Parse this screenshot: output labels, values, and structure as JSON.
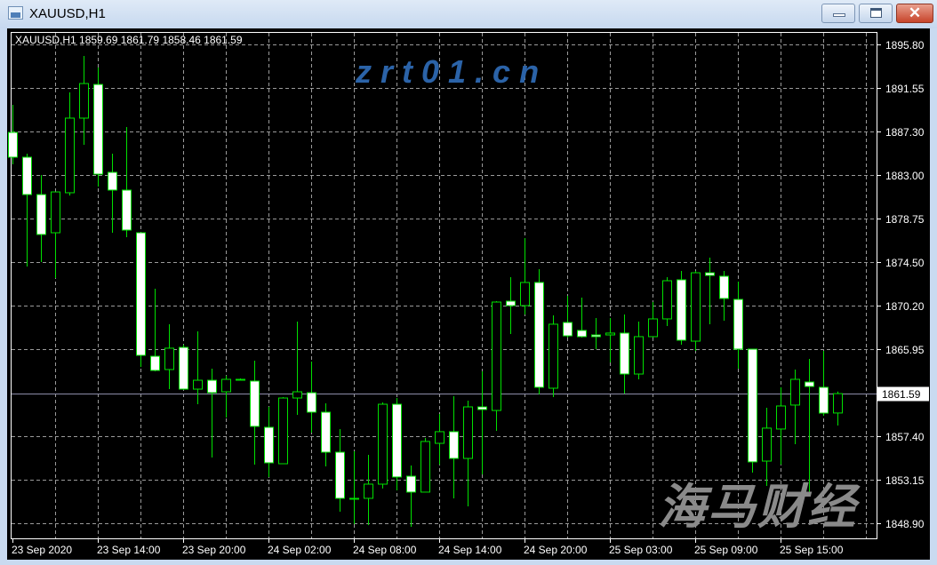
{
  "window": {
    "title": "XAUUSD,H1",
    "buttons": {
      "minimize": "minimize",
      "maximize": "maximize",
      "close": "close"
    }
  },
  "chart_header": "XAUUSD,H1  1859.69 1861.79 1858.46 1861.59",
  "watermark": {
    "text": "海马财经",
    "url": "zrt01.cn"
  },
  "colors": {
    "background": "#000000",
    "candle_stroke": "#00e000",
    "bull_body": "#000000",
    "bear_body": "#ffffff",
    "grid": "#9a9a9a",
    "axis_text": "#ffffff"
  },
  "chart_data": {
    "type": "candlestick",
    "symbol": "XAUUSD",
    "timeframe": "H1",
    "grid": true,
    "ylim": [
      1847.41,
      1897.02
    ],
    "y_ticks": [
      "1895.80",
      "1891.55",
      "1887.30",
      "1883.00",
      "1878.75",
      "1874.50",
      "1870.20",
      "1865.95",
      "1857.40",
      "1853.15",
      "1848.90"
    ],
    "current_price": "1861.59",
    "x_tick_labels": [
      "23 Sep 2020",
      "23 Sep 14:00",
      "23 Sep 20:00",
      "24 Sep 02:00",
      "24 Sep 08:00",
      "24 Sep 14:00",
      "24 Sep 20:00",
      "25 Sep 03:00",
      "25 Sep 09:00",
      "25 Sep 15:00"
    ],
    "x_tick_bar_index": [
      0,
      6,
      12,
      18,
      24,
      30,
      36,
      42,
      48,
      54
    ],
    "ohlc": [
      [
        1887.18,
        1889.88,
        1884.05,
        1884.75
      ],
      [
        1884.75,
        1885.1,
        1874.04,
        1881.09
      ],
      [
        1881.09,
        1883.01,
        1874.48,
        1877.18
      ],
      [
        1877.35,
        1881.35,
        1872.91,
        1881.35
      ],
      [
        1881.27,
        1891.1,
        1881.0,
        1888.58
      ],
      [
        1888.58,
        1894.67,
        1885.97,
        1891.97
      ],
      [
        1891.88,
        1893.54,
        1881.88,
        1883.09
      ],
      [
        1883.27,
        1885.1,
        1877.35,
        1881.53
      ],
      [
        1881.53,
        1887.71,
        1876.91,
        1877.61
      ],
      [
        1877.35,
        1877.35,
        1864.21,
        1865.34
      ],
      [
        1865.25,
        1871.87,
        1863.77,
        1863.86
      ],
      [
        1863.95,
        1868.39,
        1862.03,
        1866.04
      ],
      [
        1866.12,
        1866.38,
        1861.95,
        1862.03
      ],
      [
        1862.03,
        1867.69,
        1860.55,
        1862.9
      ],
      [
        1862.9,
        1864.03,
        1855.33,
        1861.68
      ],
      [
        1861.77,
        1863.34,
        1859.25,
        1862.99
      ],
      [
        1862.99,
        1863.08,
        1862.9,
        1862.99
      ],
      [
        1862.82,
        1864.82,
        1854.63,
        1858.38
      ],
      [
        1858.29,
        1860.29,
        1853.42,
        1854.81
      ],
      [
        1854.72,
        1861.25,
        1854.72,
        1861.16
      ],
      [
        1861.16,
        1868.65,
        1859.51,
        1861.77
      ],
      [
        1861.68,
        1864.73,
        1857.77,
        1859.77
      ],
      [
        1859.77,
        1860.64,
        1854.46,
        1855.85
      ],
      [
        1855.85,
        1858.12,
        1850.02,
        1851.33
      ],
      [
        1851.33,
        1855.94,
        1848.8,
        1851.33
      ],
      [
        1851.33,
        1855.59,
        1848.71,
        1852.72
      ],
      [
        1852.72,
        1860.73,
        1852.29,
        1860.55
      ],
      [
        1860.55,
        1861.16,
        1852.11,
        1853.42
      ],
      [
        1853.5,
        1854.55,
        1848.54,
        1851.94
      ],
      [
        1851.94,
        1857.25,
        1851.94,
        1856.9
      ],
      [
        1856.72,
        1859.6,
        1854.63,
        1857.86
      ],
      [
        1857.86,
        1861.34,
        1851.33,
        1855.24
      ],
      [
        1855.24,
        1860.9,
        1850.54,
        1860.29
      ],
      [
        1860.29,
        1863.77,
        1853.68,
        1860.03
      ],
      [
        1859.94,
        1870.65,
        1857.94,
        1870.56
      ],
      [
        1870.65,
        1873.0,
        1867.43,
        1870.21
      ],
      [
        1870.21,
        1876.83,
        1869.34,
        1872.48
      ],
      [
        1872.48,
        1873.78,
        1861.51,
        1862.21
      ],
      [
        1862.12,
        1869.26,
        1861.25,
        1868.39
      ],
      [
        1868.56,
        1871.17,
        1867.08,
        1867.25
      ],
      [
        1867.78,
        1871.0,
        1867.08,
        1867.17
      ],
      [
        1867.34,
        1868.99,
        1865.95,
        1867.17
      ],
      [
        1867.34,
        1868.99,
        1864.64,
        1867.52
      ],
      [
        1867.52,
        1869.34,
        1861.6,
        1863.51
      ],
      [
        1863.51,
        1868.65,
        1862.99,
        1867.17
      ],
      [
        1867.17,
        1870.56,
        1867.08,
        1868.91
      ],
      [
        1868.91,
        1873.0,
        1868.21,
        1872.65
      ],
      [
        1872.74,
        1873.61,
        1866.38,
        1866.82
      ],
      [
        1866.73,
        1873.61,
        1865.77,
        1873.43
      ],
      [
        1873.43,
        1874.91,
        1868.39,
        1873.17
      ],
      [
        1873.09,
        1873.61,
        1868.73,
        1870.91
      ],
      [
        1870.82,
        1872.56,
        1864.03,
        1865.95
      ],
      [
        1865.95,
        1865.95,
        1853.85,
        1854.9
      ],
      [
        1854.98,
        1860.2,
        1852.55,
        1858.21
      ],
      [
        1858.12,
        1862.21,
        1854.63,
        1860.38
      ],
      [
        1860.47,
        1863.95,
        1856.64,
        1862.99
      ],
      [
        1862.73,
        1864.99,
        1851.85,
        1862.29
      ],
      [
        1862.21,
        1865.77,
        1859.42,
        1859.68
      ],
      [
        1859.69,
        1861.79,
        1858.46,
        1861.59
      ]
    ]
  }
}
